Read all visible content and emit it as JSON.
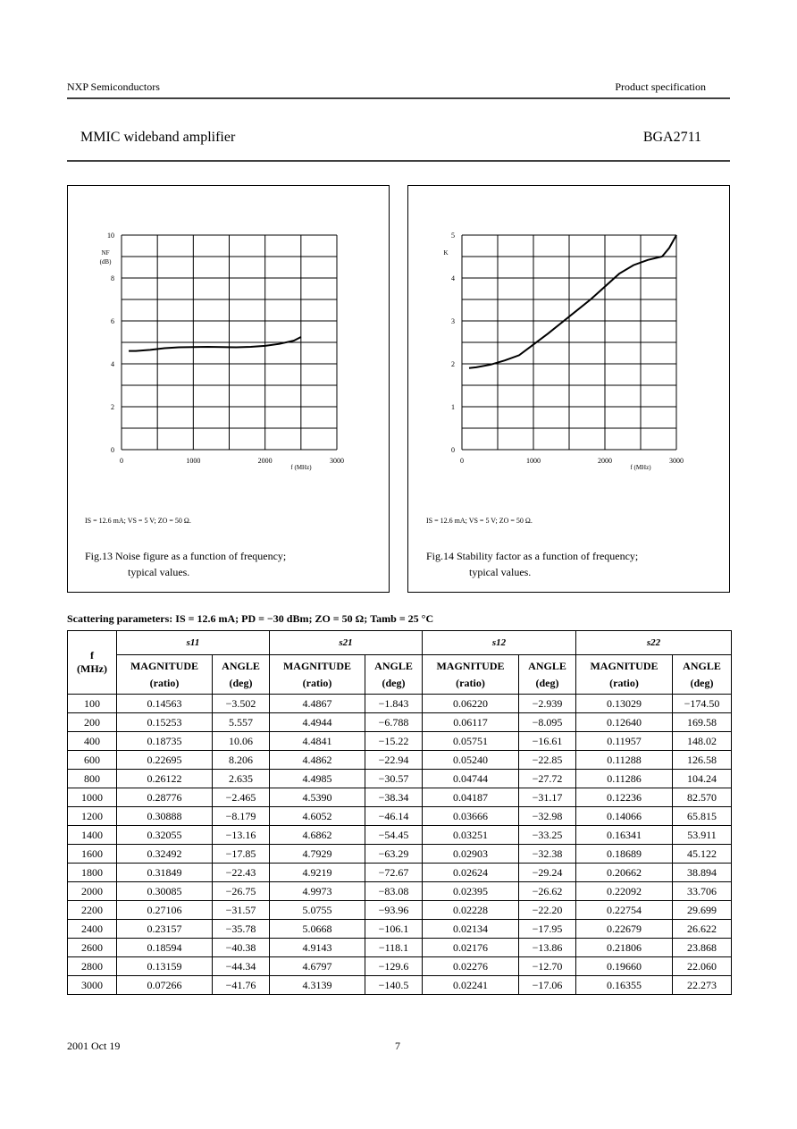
{
  "header": {
    "company": "NXP Semiconductors",
    "doc_type": "Product specification",
    "title": "MMIC wideband amplifier",
    "part": "BGA2711"
  },
  "figures": [
    {
      "type": "line",
      "ylabel": [
        "NF",
        "(dB)"
      ],
      "xlabel": "f (MHz)",
      "x": [
        100,
        200,
        400,
        600,
        800,
        1000,
        1200,
        1400,
        1600,
        1800,
        2000,
        2200,
        2400,
        2500
      ],
      "values": [
        4.6,
        4.6,
        4.65,
        4.73,
        4.77,
        4.78,
        4.79,
        4.78,
        4.77,
        4.79,
        4.84,
        4.93,
        5.08,
        5.25
      ],
      "xlim": [
        0,
        3000
      ],
      "ylim": [
        0,
        10
      ],
      "xticks": [
        0,
        1000,
        2000,
        3000
      ],
      "yticks": [
        0,
        2,
        4,
        6,
        8,
        10
      ],
      "xgrid": [
        0,
        500,
        1000,
        1500,
        2000,
        2500,
        3000
      ],
      "ygrid": [
        0,
        1,
        2,
        3,
        4,
        5,
        6,
        7,
        8,
        9,
        10
      ],
      "conditions": "IS = 12.6 mA; VS = 5 V; ZO = 50 Ω.",
      "caption": [
        "Fig.13 Noise figure as a function of frequency;",
        "typical values."
      ]
    },
    {
      "type": "line",
      "ylabel": [
        "K"
      ],
      "xlabel": "f (MHz)",
      "x": [
        100,
        200,
        400,
        600,
        800,
        1000,
        1200,
        1500,
        1800,
        2000,
        2200,
        2400,
        2600,
        2800,
        2900,
        3000
      ],
      "values": [
        1.9,
        1.92,
        1.98,
        2.08,
        2.2,
        2.45,
        2.7,
        3.1,
        3.5,
        3.8,
        4.1,
        4.3,
        4.42,
        4.5,
        4.7,
        5.0
      ],
      "xlim": [
        0,
        3000
      ],
      "ylim": [
        0,
        5
      ],
      "xticks": [
        0,
        1000,
        2000,
        3000
      ],
      "yticks": [
        0,
        1,
        2,
        3,
        4,
        5
      ],
      "xgrid": [
        0,
        500,
        1000,
        1500,
        2000,
        2500,
        3000
      ],
      "ygrid": [
        0,
        0.5,
        1,
        1.5,
        2,
        2.5,
        3,
        3.5,
        4,
        4.5,
        5
      ],
      "conditions": "IS = 12.6 mA; VS = 5 V; ZO = 50 Ω.",
      "caption": [
        "Fig.14 Stability factor as a function of frequency;",
        "typical values."
      ]
    }
  ],
  "table": {
    "title": "Scattering parameters: IS = 12.6 mA; PD = −30 dBm; ZO = 50 Ω; Tamb = 25 °C",
    "col0": [
      "f",
      "(MHz)"
    ],
    "groups": [
      "s11",
      "s21",
      "s12",
      "s22"
    ],
    "sub": [
      [
        "MAGNITUDE",
        "(ratio)"
      ],
      [
        "ANGLE",
        "(deg)"
      ]
    ],
    "rows": [
      [
        "100",
        "0.14563",
        "−3.502",
        "4.4867",
        "−1.843",
        "0.06220",
        "−2.939",
        "0.13029",
        "−174.50"
      ],
      [
        "200",
        "0.15253",
        "5.557",
        "4.4944",
        "−6.788",
        "0.06117",
        "−8.095",
        "0.12640",
        "169.58"
      ],
      [
        "400",
        "0.18735",
        "10.06",
        "4.4841",
        "−15.22",
        "0.05751",
        "−16.61",
        "0.11957",
        "148.02"
      ],
      [
        "600",
        "0.22695",
        "8.206",
        "4.4862",
        "−22.94",
        "0.05240",
        "−22.85",
        "0.11288",
        "126.58"
      ],
      [
        "800",
        "0.26122",
        "2.635",
        "4.4985",
        "−30.57",
        "0.04744",
        "−27.72",
        "0.11286",
        "104.24"
      ],
      [
        "1000",
        "0.28776",
        "−2.465",
        "4.5390",
        "−38.34",
        "0.04187",
        "−31.17",
        "0.12236",
        "82.570"
      ],
      [
        "1200",
        "0.30888",
        "−8.179",
        "4.6052",
        "−46.14",
        "0.03666",
        "−32.98",
        "0.14066",
        "65.815"
      ],
      [
        "1400",
        "0.32055",
        "−13.16",
        "4.6862",
        "−54.45",
        "0.03251",
        "−33.25",
        "0.16341",
        "53.911"
      ],
      [
        "1600",
        "0.32492",
        "−17.85",
        "4.7929",
        "−63.29",
        "0.02903",
        "−32.38",
        "0.18689",
        "45.122"
      ],
      [
        "1800",
        "0.31849",
        "−22.43",
        "4.9219",
        "−72.67",
        "0.02624",
        "−29.24",
        "0.20662",
        "38.894"
      ],
      [
        "2000",
        "0.30085",
        "−26.75",
        "4.9973",
        "−83.08",
        "0.02395",
        "−26.62",
        "0.22092",
        "33.706"
      ],
      [
        "2200",
        "0.27106",
        "−31.57",
        "5.0755",
        "−93.96",
        "0.02228",
        "−22.20",
        "0.22754",
        "29.699"
      ],
      [
        "2400",
        "0.23157",
        "−35.78",
        "5.0668",
        "−106.1",
        "0.02134",
        "−17.95",
        "0.22679",
        "26.622"
      ],
      [
        "2600",
        "0.18594",
        "−40.38",
        "4.9143",
        "−118.1",
        "0.02176",
        "−13.86",
        "0.21806",
        "23.868"
      ],
      [
        "2800",
        "0.13159",
        "−44.34",
        "4.6797",
        "−129.6",
        "0.02276",
        "−12.70",
        "0.19660",
        "22.060"
      ],
      [
        "3000",
        "0.07266",
        "−41.76",
        "4.3139",
        "−140.5",
        "0.02241",
        "−17.06",
        "0.16355",
        "22.273"
      ]
    ]
  },
  "footer": {
    "date": "2001 Oct 19",
    "page": "7"
  }
}
